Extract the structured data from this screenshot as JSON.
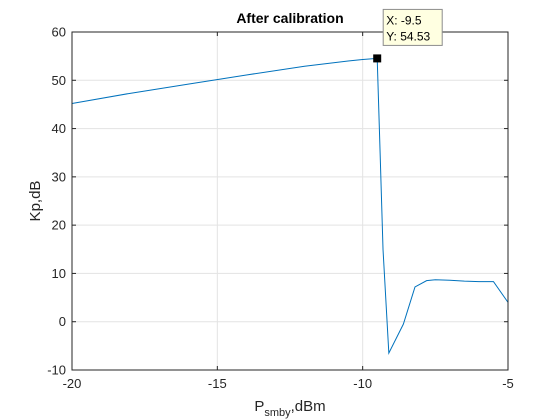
{
  "chart_data": {
    "type": "line",
    "title": "After calibration",
    "xlabel_main": "P",
    "xlabel_sub": "smby",
    "xlabel_suffix": ",dBm",
    "ylabel": "Kp,dB",
    "xlim": [
      -20,
      -5
    ],
    "ylim": [
      -10,
      60
    ],
    "xticks": [
      -20,
      -15,
      -10,
      -5
    ],
    "yticks": [
      -10,
      0,
      10,
      20,
      30,
      40,
      50,
      60
    ],
    "grid": true,
    "series": [
      {
        "color": "#0072bd",
        "x": [
          -20,
          -18,
          -16,
          -14,
          -12,
          -10.5,
          -10,
          -9.5,
          -9.4,
          -9.3,
          -9.1,
          -8.6,
          -8.2,
          -7.8,
          -7.5,
          -7.0,
          -6.5,
          -6.0,
          -5.5,
          -5.0
        ],
        "y": [
          45.2,
          47.3,
          49.2,
          51.1,
          52.9,
          54.0,
          54.3,
          54.53,
          35.0,
          15.0,
          -6.5,
          -0.5,
          7.2,
          8.5,
          8.7,
          8.6,
          8.4,
          8.3,
          8.3,
          4.0
        ]
      }
    ],
    "datatip": {
      "x": -9.5,
      "y": 54.53,
      "x_text": "X: -9.5",
      "y_text": "Y: 54.53"
    }
  }
}
